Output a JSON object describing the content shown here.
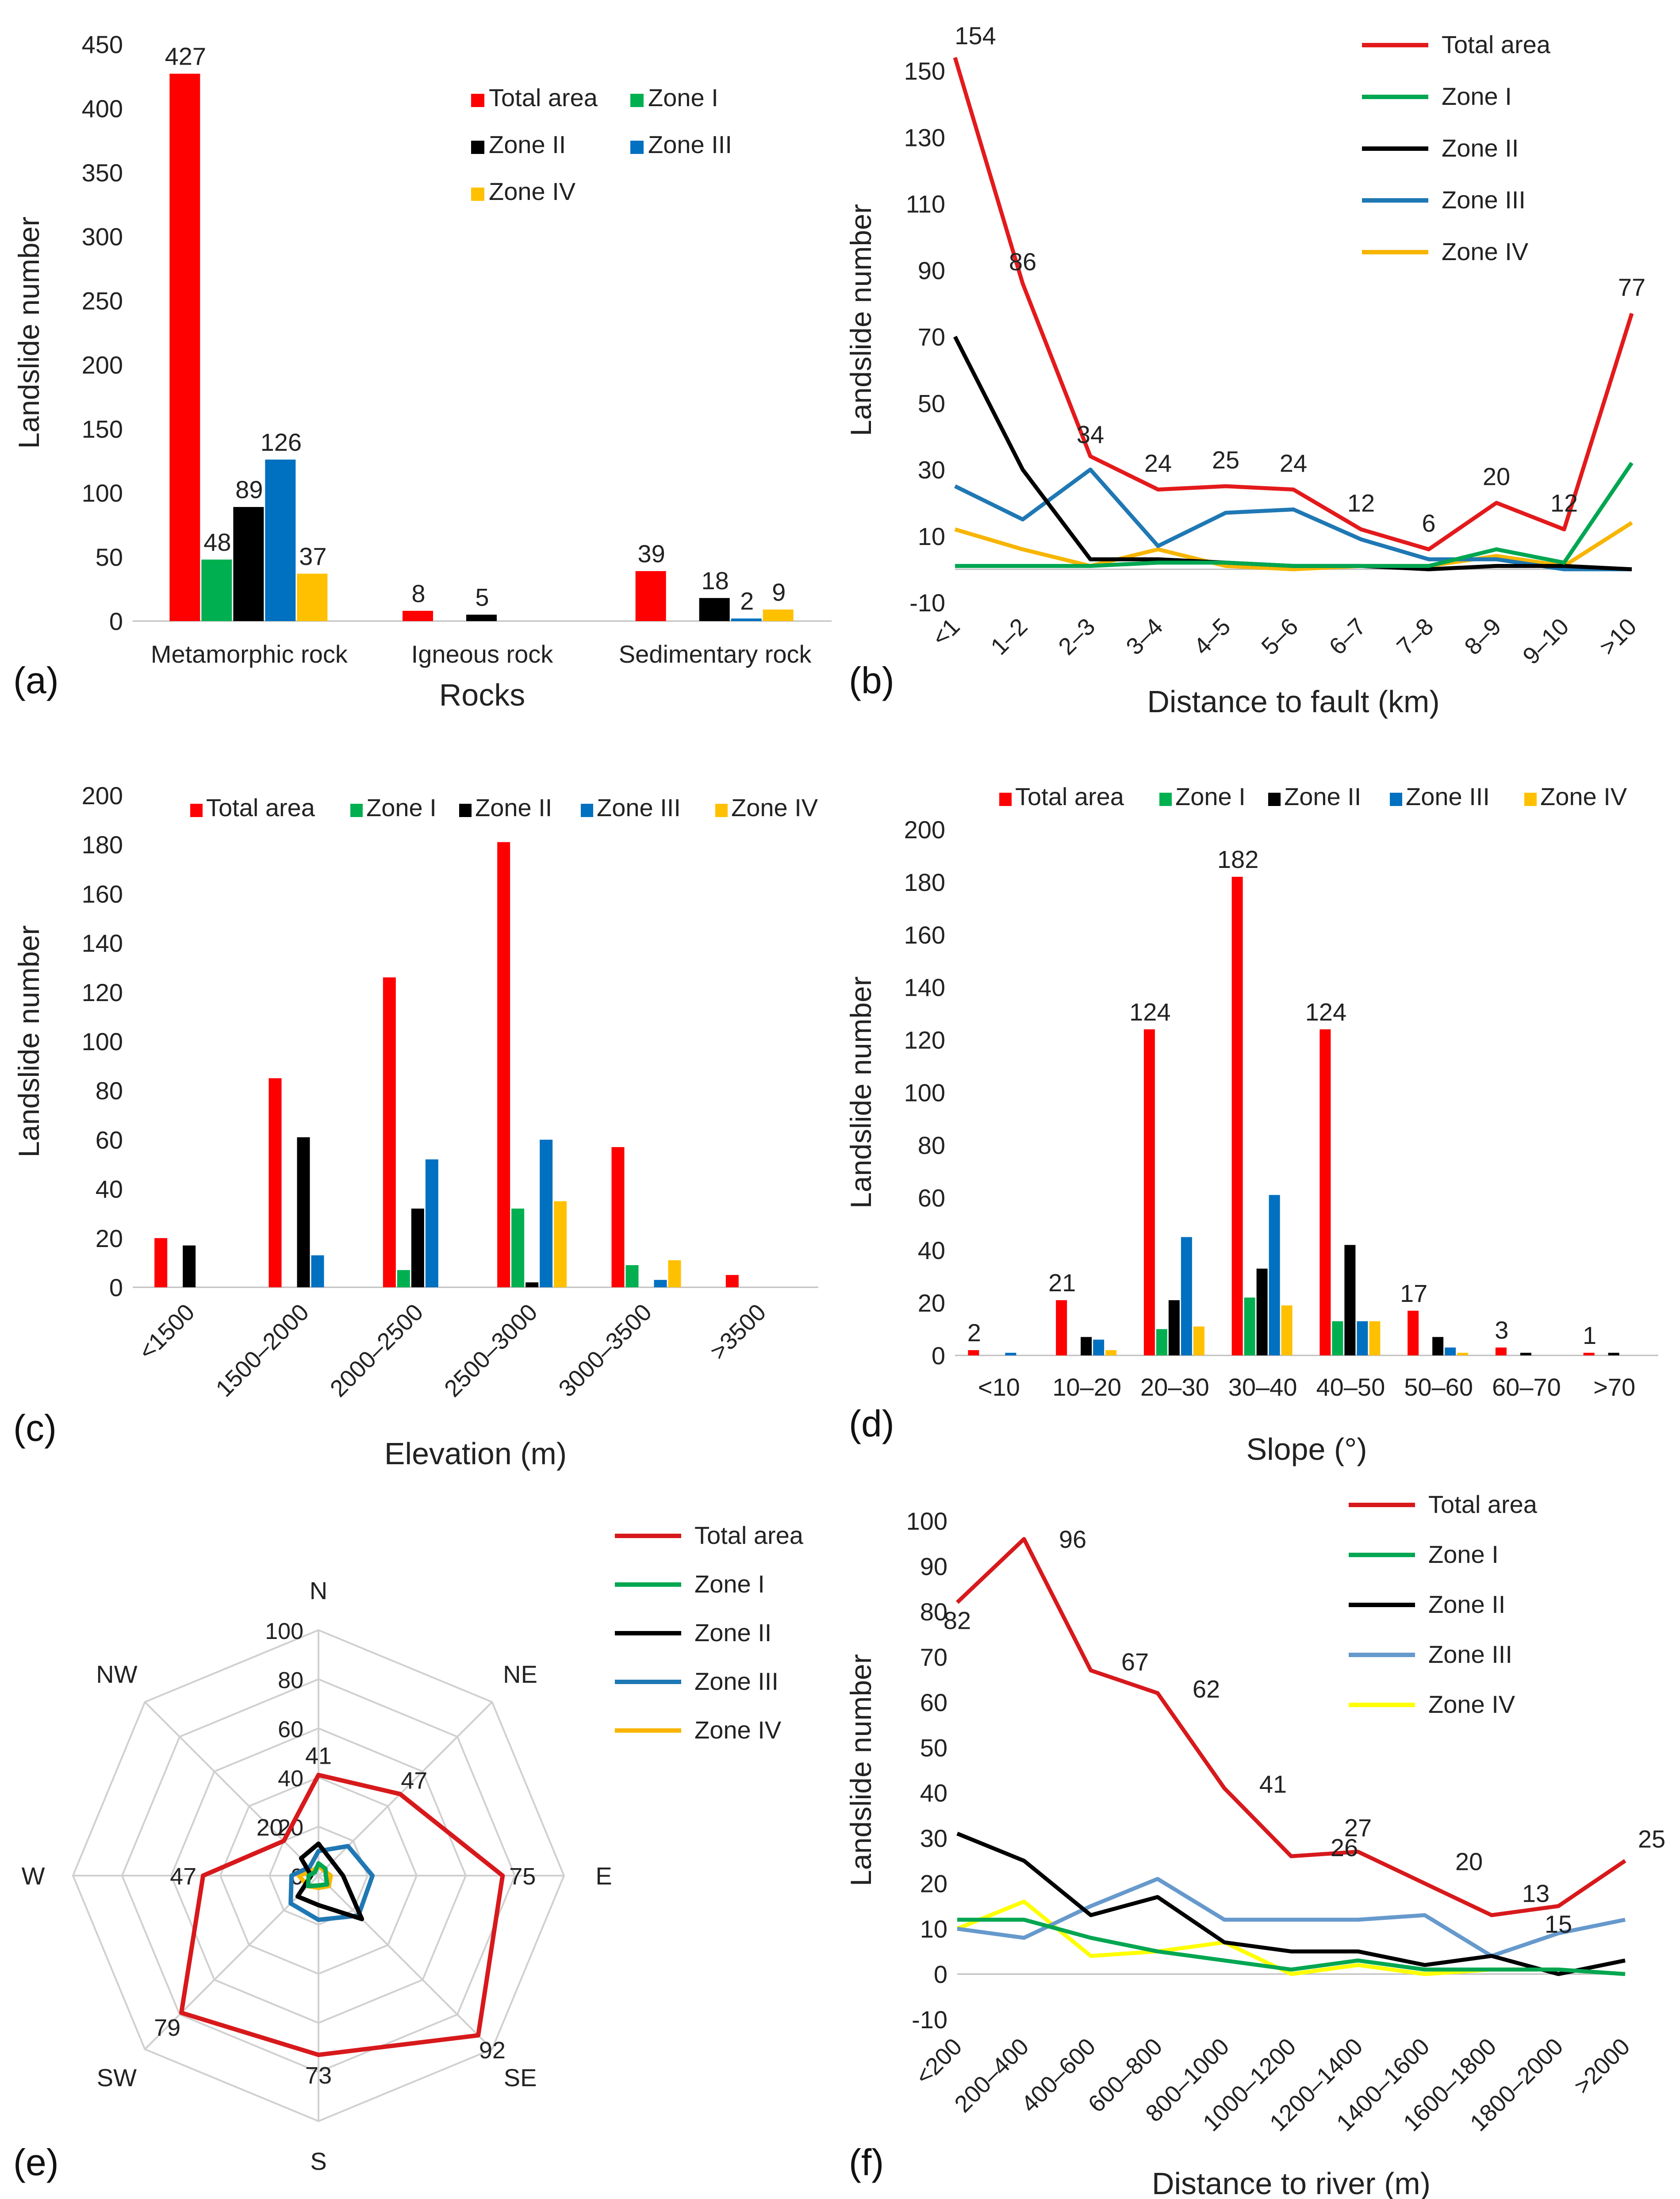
{
  "chart_data": [
    {
      "id": "a",
      "panel_label": "(a)",
      "type": "bar",
      "xlabel": "Rocks",
      "ylabel": "Landslide number",
      "ylim": [
        0,
        450
      ],
      "yticks": [
        0,
        50,
        100,
        150,
        200,
        250,
        300,
        350,
        400,
        450
      ],
      "categories": [
        "Metamorphic rock",
        "Igneous rock",
        "Sedimentary rock"
      ],
      "legend_position": "top-right",
      "series": [
        {
          "name": "Total area",
          "color": "#ff0000",
          "values": [
            427,
            8,
            39
          ],
          "labels": [
            "427",
            "8",
            "39"
          ]
        },
        {
          "name": "Zone I",
          "color": "#00b050",
          "values": [
            48,
            0,
            0
          ],
          "labels": [
            "48",
            "",
            ""
          ]
        },
        {
          "name": "Zone II",
          "color": "#000000",
          "values": [
            89,
            5,
            18
          ],
          "labels": [
            "89",
            "5",
            "18"
          ]
        },
        {
          "name": "Zone III",
          "color": "#0070c0",
          "values": [
            126,
            0,
            2
          ],
          "labels": [
            "126",
            "",
            "2"
          ]
        },
        {
          "name": "Zone IV",
          "color": "#ffc000",
          "values": [
            37,
            0,
            9
          ],
          "labels": [
            "37",
            "",
            "9"
          ]
        }
      ]
    },
    {
      "id": "b",
      "panel_label": "(b)",
      "type": "line",
      "xlabel": "Distance to fault (km)",
      "ylabel": "Landslide number",
      "ylim": [
        -10,
        160
      ],
      "yticks": [
        -10,
        10,
        30,
        50,
        70,
        90,
        110,
        130,
        150
      ],
      "categories": [
        "<1",
        "1–2",
        "2–3",
        "3–4",
        "4–5",
        "5–6",
        "6–7",
        "7–8",
        "8–9",
        "9–10",
        ">10"
      ],
      "legend_position": "top-right",
      "series": [
        {
          "name": "Total area",
          "color": "#e31a1c",
          "values": [
            154,
            86,
            34,
            24,
            25,
            24,
            12,
            6,
            20,
            12,
            77
          ],
          "labels": [
            "154",
            "86",
            "34",
            "24",
            "25",
            "24",
            "12",
            "6",
            "20",
            "12",
            "77"
          ]
        },
        {
          "name": "Zone I",
          "color": "#00a651",
          "values": [
            1,
            1,
            1,
            2,
            2,
            1,
            1,
            1,
            6,
            2,
            32
          ]
        },
        {
          "name": "Zone II",
          "color": "#000000",
          "values": [
            70,
            30,
            3,
            3,
            2,
            1,
            1,
            0,
            1,
            1,
            0
          ]
        },
        {
          "name": "Zone III",
          "color": "#1f78b4",
          "values": [
            25,
            15,
            30,
            7,
            17,
            18,
            9,
            3,
            3,
            0,
            0
          ]
        },
        {
          "name": "Zone IV",
          "color": "#f7b500",
          "values": [
            12,
            6,
            1,
            6,
            1,
            0,
            1,
            1,
            4,
            1,
            14
          ]
        }
      ]
    },
    {
      "id": "c",
      "panel_label": "(c)",
      "type": "bar",
      "xlabel": "Elevation (m)",
      "ylabel": "Landslide number",
      "ylim": [
        0,
        200
      ],
      "yticks": [
        0,
        20,
        40,
        60,
        80,
        100,
        120,
        140,
        160,
        180,
        200
      ],
      "categories": [
        "<1500",
        "1500–2000",
        "2000–2500",
        "2500–3000",
        "3000–3500",
        ">3500"
      ],
      "legend_position": "top",
      "series": [
        {
          "name": "Total area",
          "color": "#ff0000",
          "values": [
            20,
            85,
            126,
            181,
            57,
            5
          ]
        },
        {
          "name": "Zone I",
          "color": "#00b050",
          "values": [
            0,
            0,
            7,
            32,
            9,
            0
          ]
        },
        {
          "name": "Zone II",
          "color": "#000000",
          "values": [
            17,
            61,
            32,
            2,
            0,
            0
          ]
        },
        {
          "name": "Zone III",
          "color": "#0070c0",
          "values": [
            0,
            13,
            52,
            60,
            3,
            0
          ]
        },
        {
          "name": "Zone IV",
          "color": "#ffc000",
          "values": [
            0,
            0,
            0,
            35,
            11,
            0
          ]
        }
      ]
    },
    {
      "id": "d",
      "panel_label": "(d)",
      "type": "bar",
      "xlabel": "Slope (°)",
      "ylabel": "Landslide number",
      "ylim": [
        0,
        200
      ],
      "yticks": [
        0,
        20,
        40,
        60,
        80,
        100,
        120,
        140,
        160,
        180,
        200
      ],
      "categories": [
        "<10",
        "10–20",
        "20–30",
        "30–40",
        "40–50",
        "50–60",
        "60–70",
        ">70"
      ],
      "legend_position": "top",
      "series": [
        {
          "name": "Total area",
          "color": "#ff0000",
          "values": [
            2,
            21,
            124,
            182,
            124,
            17,
            3,
            1
          ],
          "labels": [
            "2",
            "21",
            "124",
            "182",
            "124",
            "17",
            "3",
            "1"
          ]
        },
        {
          "name": "Zone I",
          "color": "#00b050",
          "values": [
            0,
            0,
            10,
            22,
            13,
            0,
            0,
            0
          ]
        },
        {
          "name": "Zone II",
          "color": "#000000",
          "values": [
            0,
            7,
            21,
            33,
            42,
            7,
            1,
            1
          ]
        },
        {
          "name": "Zone III",
          "color": "#0070c0",
          "values": [
            1,
            6,
            45,
            61,
            13,
            3,
            0,
            0
          ]
        },
        {
          "name": "Zone IV",
          "color": "#ffc000",
          "values": [
            0,
            2,
            11,
            19,
            13,
            1,
            0,
            0
          ]
        }
      ]
    },
    {
      "id": "e",
      "panel_label": "(e)",
      "type": "radar",
      "rlim": [
        0,
        100
      ],
      "rticks": [
        0,
        20,
        40,
        60,
        80,
        100
      ],
      "categories": [
        "N",
        "NE",
        "E",
        "SE",
        "S",
        "SW",
        "W",
        "NW"
      ],
      "legend_position": "top-right",
      "series": [
        {
          "name": "Total area",
          "color": "#d7191c",
          "values": [
            41,
            47,
            75,
            92,
            73,
            79,
            47,
            20
          ],
          "labels": [
            "41",
            "47",
            "75",
            "92",
            "73",
            "79",
            "47",
            "20"
          ]
        },
        {
          "name": "Zone I",
          "color": "#00a651",
          "values": [
            5,
            4,
            3,
            5,
            4,
            6,
            4,
            2
          ]
        },
        {
          "name": "Zone II",
          "color": "#000000",
          "values": [
            13,
            8,
            10,
            25,
            12,
            12,
            3,
            10
          ]
        },
        {
          "name": "Zone III",
          "color": "#1f78b4",
          "values": [
            10,
            17,
            22,
            23,
            18,
            16,
            11,
            5
          ]
        },
        {
          "name": "Zone IV",
          "color": "#f7b500",
          "values": [
            4,
            3,
            5,
            6,
            5,
            6,
            8,
            3
          ]
        }
      ]
    },
    {
      "id": "f",
      "panel_label": "(f)",
      "type": "line",
      "xlabel": "Distance to river (m)",
      "ylabel": "Landslide number",
      "ylim": [
        -10,
        100
      ],
      "yticks": [
        -10,
        0,
        10,
        20,
        30,
        40,
        50,
        60,
        70,
        80,
        90,
        100
      ],
      "categories": [
        "<200",
        "200–400",
        "400–600",
        "600–800",
        "800–1000",
        "1000–1200",
        "1200–1400",
        "1400–1600",
        "1600–1800",
        "1800–2000",
        ">2000"
      ],
      "legend_position": "top-right",
      "series": [
        {
          "name": "Total area",
          "color": "#d7191c",
          "values": [
            82,
            96,
            67,
            62,
            41,
            26,
            27,
            20,
            13,
            15,
            25
          ],
          "labels": [
            "82",
            "96",
            "67",
            "62",
            "41",
            "26",
            "27",
            "20",
            "13",
            "15",
            "25"
          ]
        },
        {
          "name": "Zone I",
          "color": "#00a651",
          "values": [
            12,
            12,
            8,
            5,
            3,
            1,
            3,
            1,
            1,
            1,
            0
          ]
        },
        {
          "name": "Zone II",
          "color": "#000000",
          "values": [
            31,
            25,
            13,
            17,
            7,
            5,
            5,
            2,
            4,
            0,
            3
          ]
        },
        {
          "name": "Zone III",
          "color": "#6699cc",
          "values": [
            10,
            8,
            15,
            21,
            12,
            12,
            12,
            13,
            4,
            9,
            12
          ]
        },
        {
          "name": "Zone IV",
          "color": "#ffff00",
          "values": [
            10,
            16,
            4,
            5,
            7,
            0,
            2,
            0,
            1,
            1,
            0
          ]
        }
      ]
    }
  ]
}
